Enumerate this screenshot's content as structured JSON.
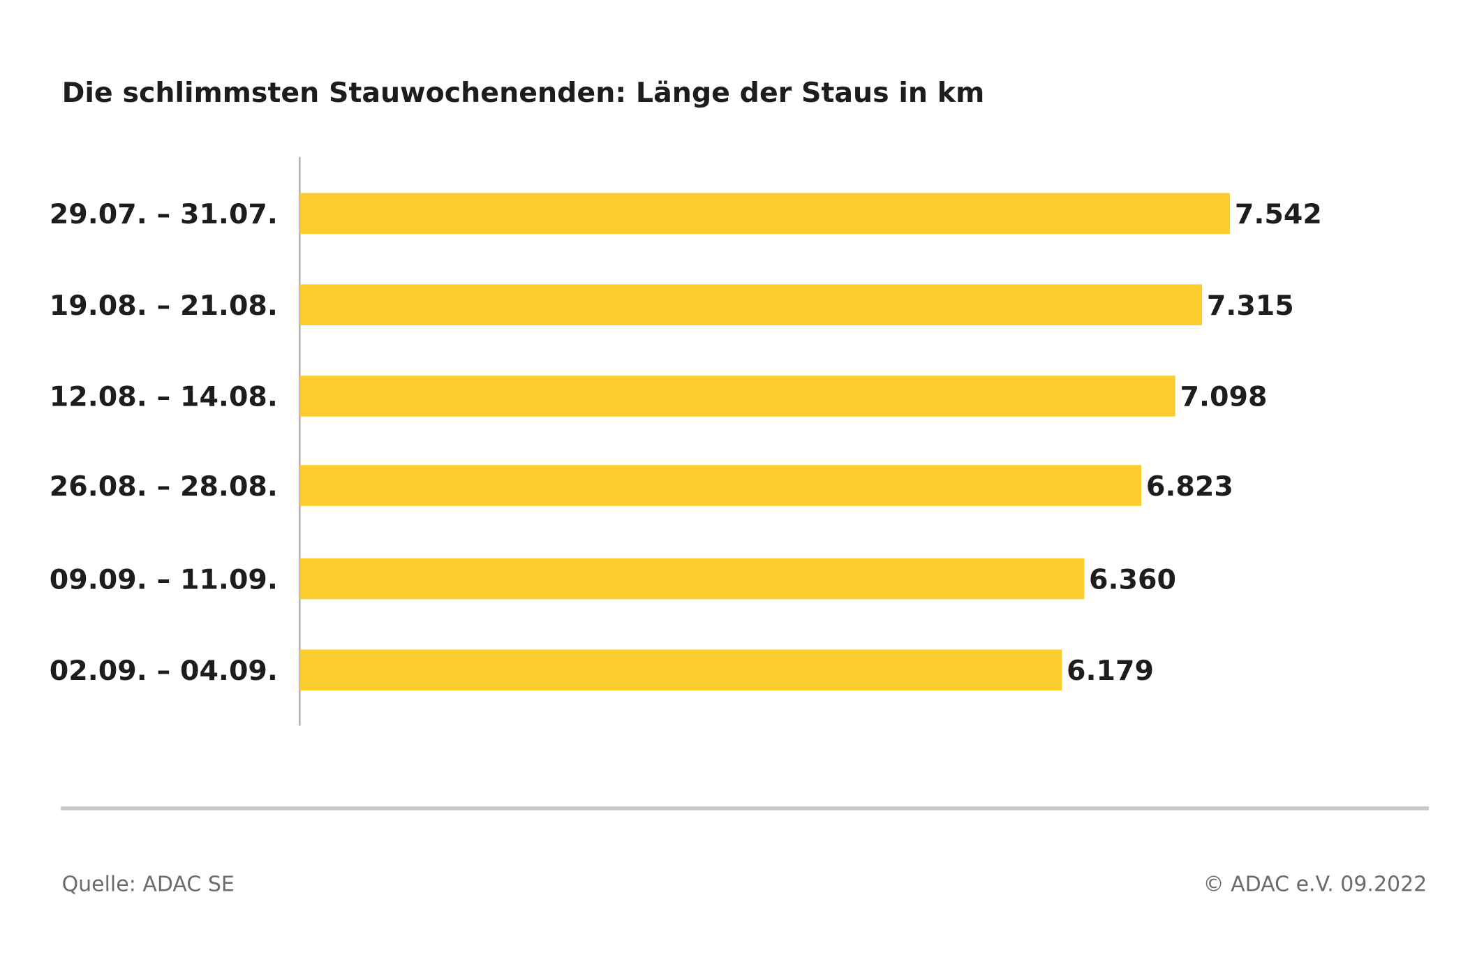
{
  "chart_data": {
    "type": "bar",
    "orientation": "horizontal",
    "title": "Die schlimmsten Stauwochenenden: Länge der Staus in km",
    "categories": [
      "29.07. – 31.07.",
      "19.08. – 21.08.",
      "12.08. – 14.08.",
      "26.08. – 28.08.",
      "09.09. – 11.09.",
      "02.09. – 04.09."
    ],
    "values": [
      7542,
      7315,
      7098,
      6823,
      6360,
      6179
    ],
    "value_labels": [
      "7.542",
      "7.315",
      "7.098",
      "6.823",
      "6.360",
      "6.179"
    ],
    "xlabel": "",
    "ylabel": "",
    "xlim": [
      0,
      7542
    ],
    "grid": false,
    "bar_color": "#FCCB2E"
  },
  "footer": {
    "source": "Quelle: ADAC SE",
    "copyright": "© ADAC e.V. 09.2022"
  }
}
